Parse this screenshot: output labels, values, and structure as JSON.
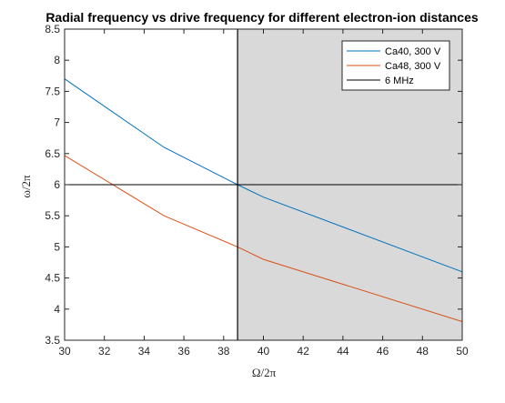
{
  "chart_data": {
    "type": "line",
    "title": "Radial frequency vs drive frequency for different electron-ion distances",
    "xlabel": "Ω/2π",
    "ylabel": "ω/2π",
    "xlim": [
      30,
      50
    ],
    "ylim": [
      3.5,
      8.5
    ],
    "x_ticks": [
      30,
      32,
      34,
      36,
      38,
      40,
      42,
      44,
      46,
      48,
      50
    ],
    "y_ticks": [
      "3.5",
      "4",
      "4.5",
      "5",
      "5.5",
      "6",
      "6.5",
      "7",
      "7.5",
      "8",
      "8.5"
    ],
    "grid": false,
    "legend_position": "top-right",
    "series": [
      {
        "name": "Ca40, 300 V",
        "color": "#0072BD",
        "x": [
          30,
          35,
          38.7,
          40,
          50
        ],
        "y": [
          7.7,
          6.6,
          6.0,
          5.8,
          4.6
        ]
      },
      {
        "name": "Ca48, 300 V",
        "color": "#D95319",
        "x": [
          30,
          35,
          38.7,
          40,
          50
        ],
        "y": [
          6.47,
          5.5,
          5.0,
          4.8,
          3.8
        ]
      },
      {
        "name": "6 MHz",
        "color": "#000000",
        "x": [
          30,
          50
        ],
        "y": [
          6,
          6
        ]
      }
    ],
    "shaded_region": {
      "x_start": 38.7,
      "x_end": 50,
      "color": "#d9d9d9"
    },
    "vertical_line": {
      "x": 38.7,
      "color": "#000000"
    }
  }
}
